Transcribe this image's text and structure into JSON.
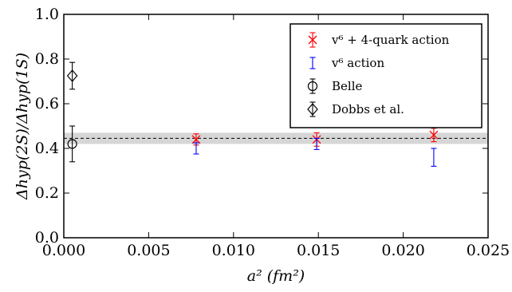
{
  "chart_data": {
    "type": "scatter",
    "xlabel": "a² (fm²)",
    "ylabel": "Δhyp(2S)/Δhyp(1S)",
    "xlim": [
      0.0,
      0.025
    ],
    "ylim": [
      0.0,
      1.0
    ],
    "xticks": [
      "0.000",
      "0.005",
      "0.010",
      "0.015",
      "0.020",
      "0.025"
    ],
    "yticks": [
      "0.0",
      "0.2",
      "0.4",
      "0.6",
      "0.8",
      "1.0"
    ],
    "band": {
      "center": 0.445,
      "low": 0.42,
      "high": 0.47,
      "color": "#c8c8c8"
    },
    "legend_position": "top-right",
    "series": [
      {
        "name": "v⁶ + 4-quark action",
        "marker": "x",
        "color": "#ff0000",
        "errcolor": "#ff0000",
        "points": [
          {
            "x": 0.0078,
            "y": 0.44,
            "err": 0.025
          },
          {
            "x": 0.0149,
            "y": 0.44,
            "err": 0.03
          },
          {
            "x": 0.0218,
            "y": 0.46,
            "err": 0.03
          }
        ]
      },
      {
        "name": "v⁶ action",
        "marker": "errorbar",
        "color": "#0000ff",
        "errcolor": "#0000ff",
        "points": [
          {
            "x": 0.0078,
            "y": 0.4,
            "err": 0.025
          },
          {
            "x": 0.0149,
            "y": 0.42,
            "err": 0.025
          },
          {
            "x": 0.0218,
            "y": 0.36,
            "err": 0.04
          }
        ]
      },
      {
        "name": "Belle",
        "marker": "circle",
        "color": "#000000",
        "errcolor": "#000000",
        "points": [
          {
            "x": 0.0005,
            "y": 0.42,
            "err": 0.08
          }
        ]
      },
      {
        "name": "Dobbs et al.",
        "marker": "diamond",
        "color": "#000000",
        "errcolor": "#000000",
        "points": [
          {
            "x": 0.0005,
            "y": 0.725,
            "err": 0.06
          }
        ]
      }
    ]
  }
}
